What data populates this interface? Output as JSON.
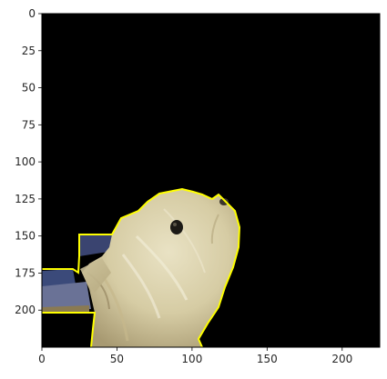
{
  "plot": {
    "type": "image",
    "image_size": [
      225,
      225
    ],
    "xlim": [
      0,
      225
    ],
    "ylim": [
      225,
      0
    ],
    "y_inverted": true,
    "background_color": "#000000",
    "outline_color": "#ffff00",
    "x_ticks": [
      {
        "value": 0,
        "label": "0"
      },
      {
        "value": 50,
        "label": "50"
      },
      {
        "value": 100,
        "label": "100"
      },
      {
        "value": 150,
        "label": "150"
      },
      {
        "value": 200,
        "label": "200"
      }
    ],
    "y_ticks": [
      {
        "value": 0,
        "label": "0"
      },
      {
        "value": 25,
        "label": "25"
      },
      {
        "value": 50,
        "label": "50"
      },
      {
        "value": 75,
        "label": "75"
      },
      {
        "value": 100,
        "label": "100"
      },
      {
        "value": 125,
        "label": "125"
      },
      {
        "value": 150,
        "label": "150"
      },
      {
        "value": 175,
        "label": "175"
      },
      {
        "value": 200,
        "label": "200"
      }
    ],
    "subject": "white terrier dog head, segmented and outlined in yellow"
  }
}
